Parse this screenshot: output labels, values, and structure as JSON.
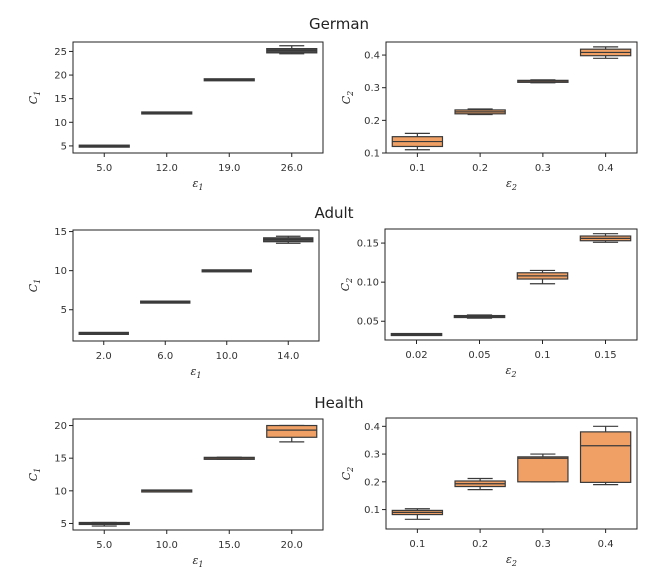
{
  "chart_data": [
    {
      "type": "box",
      "row_title": "German",
      "xlabel": "ε1",
      "ylabel": "C1",
      "categories": [
        "5.0",
        "12.0",
        "19.0",
        "26.0"
      ],
      "yticks": [
        "5",
        "10",
        "15",
        "20",
        "25"
      ],
      "ylim": [
        3.5,
        27.0
      ],
      "color": "#4a4a4a",
      "boxes": [
        {
          "min": 4.9,
          "q1": 4.9,
          "median": 5.0,
          "q3": 5.0,
          "max": 5.1
        },
        {
          "min": 11.95,
          "q1": 11.95,
          "median": 12.0,
          "q3": 12.0,
          "max": 12.05
        },
        {
          "min": 18.9,
          "q1": 18.95,
          "median": 19.0,
          "q3": 19.05,
          "max": 19.1
        },
        {
          "min": 24.5,
          "q1": 24.7,
          "median": 25.2,
          "q3": 25.6,
          "max": 26.2
        }
      ]
    },
    {
      "type": "box",
      "row_title": "German",
      "xlabel": "ε2",
      "ylabel": "C2",
      "categories": [
        "0.1",
        "0.2",
        "0.3",
        "0.4"
      ],
      "yticks": [
        "0.1",
        "0.2",
        "0.3",
        "0.4"
      ],
      "ylim": [
        0.1,
        0.44
      ],
      "color": "#f0a064",
      "boxes": [
        {
          "min": 0.11,
          "q1": 0.12,
          "median": 0.135,
          "q3": 0.15,
          "max": 0.16
        },
        {
          "min": 0.218,
          "q1": 0.22,
          "median": 0.226,
          "q3": 0.232,
          "max": 0.235
        },
        {
          "min": 0.315,
          "q1": 0.317,
          "median": 0.32,
          "q3": 0.322,
          "max": 0.324
        },
        {
          "min": 0.39,
          "q1": 0.398,
          "median": 0.408,
          "q3": 0.418,
          "max": 0.425
        }
      ]
    },
    {
      "type": "box",
      "row_title": "Adult",
      "xlabel": "ε1",
      "ylabel": "C1",
      "categories": [
        "2.0",
        "6.0",
        "10.0",
        "14.0"
      ],
      "yticks": [
        "5",
        "10",
        "15"
      ],
      "ylim": [
        1.0,
        15.2
      ],
      "color": "#4a4a4a",
      "boxes": [
        {
          "min": 1.95,
          "q1": 1.95,
          "median": 2.0,
          "q3": 2.0,
          "max": 2.05
        },
        {
          "min": 5.95,
          "q1": 5.95,
          "median": 6.0,
          "q3": 6.0,
          "max": 6.05
        },
        {
          "min": 9.95,
          "q1": 9.95,
          "median": 10.0,
          "q3": 10.0,
          "max": 10.05
        },
        {
          "min": 13.5,
          "q1": 13.7,
          "median": 14.0,
          "q3": 14.2,
          "max": 14.4
        }
      ]
    },
    {
      "type": "box",
      "row_title": "Adult",
      "xlabel": "ε2",
      "ylabel": "C2",
      "categories": [
        "0.02",
        "0.05",
        "0.1",
        "0.15"
      ],
      "yticks": [
        "0.05",
        "0.10",
        "0.15"
      ],
      "ylim": [
        0.026,
        0.168
      ],
      "color": "#f0a064",
      "boxes": [
        {
          "min": 0.032,
          "q1": 0.032,
          "median": 0.033,
          "q3": 0.034,
          "max": 0.034
        },
        {
          "min": 0.054,
          "q1": 0.055,
          "median": 0.056,
          "q3": 0.057,
          "max": 0.058
        },
        {
          "min": 0.098,
          "q1": 0.104,
          "median": 0.108,
          "q3": 0.112,
          "max": 0.115
        },
        {
          "min": 0.151,
          "q1": 0.153,
          "median": 0.156,
          "q3": 0.159,
          "max": 0.162
        }
      ]
    },
    {
      "type": "box",
      "row_title": "Health",
      "xlabel": "ε1",
      "ylabel": "C1",
      "categories": [
        "5.0",
        "10.0",
        "15.0",
        "20.0"
      ],
      "yticks": [
        "5",
        "10",
        "15",
        "20"
      ],
      "ylim": [
        4.0,
        21.0
      ],
      "color": "#f0a064",
      "boxes": [
        {
          "min": 4.6,
          "q1": 4.95,
          "median": 5.0,
          "q3": 5.05,
          "max": 5.15
        },
        {
          "min": 9.85,
          "q1": 9.9,
          "median": 10.0,
          "q3": 10.05,
          "max": 10.1
        },
        {
          "min": 14.85,
          "q1": 14.9,
          "median": 15.0,
          "q3": 15.05,
          "max": 15.15
        },
        {
          "min": 17.5,
          "q1": 18.2,
          "median": 19.3,
          "q3": 20.0,
          "max": 20.0
        }
      ]
    },
    {
      "type": "box",
      "row_title": "Health",
      "xlabel": "ε2",
      "ylabel": "C2",
      "categories": [
        "0.1",
        "0.2",
        "0.3",
        "0.4"
      ],
      "yticks": [
        "0.1",
        "0.2",
        "0.3",
        "0.4"
      ],
      "ylim": [
        0.03,
        0.43
      ],
      "color": "#f0a064",
      "boxes": [
        {
          "min": 0.065,
          "q1": 0.082,
          "median": 0.09,
          "q3": 0.097,
          "max": 0.103
        },
        {
          "min": 0.172,
          "q1": 0.183,
          "median": 0.193,
          "q3": 0.203,
          "max": 0.212
        },
        {
          "min": 0.2,
          "q1": 0.2,
          "median": 0.285,
          "q3": 0.29,
          "max": 0.3
        },
        {
          "min": 0.19,
          "q1": 0.198,
          "median": 0.33,
          "q3": 0.38,
          "max": 0.4
        }
      ]
    }
  ]
}
